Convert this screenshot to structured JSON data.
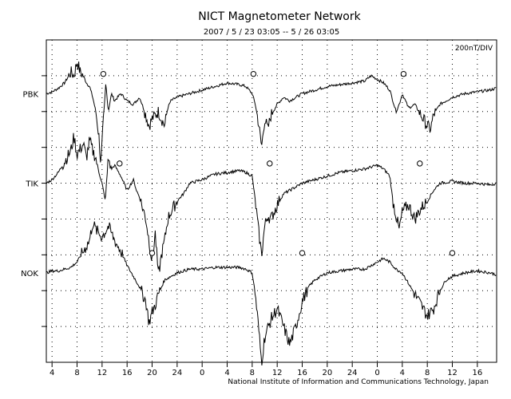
{
  "chart_data": {
    "type": "line",
    "title": "NICT Magnetometer Network",
    "subtitle": "2007 / 5 / 23   03:05  --  5 / 26   03:05",
    "scale_label": "200nT/DIV",
    "footer": "National Institute of Information and Communications Technology, Japan",
    "x_tick_labels": [
      "4",
      "8",
      "12",
      "16",
      "20",
      "24",
      "0",
      "4",
      "8",
      "12",
      "16",
      "20",
      "24",
      "0",
      "4",
      "8",
      "12",
      "16",
      "20",
      "24",
      "0"
    ],
    "x_range_hours": [
      3.0833,
      75.0833
    ],
    "grid": true,
    "series": [
      {
        "name": "PBK",
        "baseline_div": 1.5,
        "midnight_markers_hours": [
          12.2,
          36.2,
          60.2
        ],
        "values": [
          [
            3.1,
            0.0
          ],
          [
            4,
            0.05
          ],
          [
            5,
            0.15
          ],
          [
            6,
            0.3
          ],
          [
            7,
            0.6
          ],
          [
            7.5,
            0.5
          ],
          [
            8,
            0.9
          ],
          [
            8.5,
            0.6
          ],
          [
            9,
            0.5
          ],
          [
            9.5,
            0.3
          ],
          [
            10,
            0.2
          ],
          [
            10.5,
            -0.1
          ],
          [
            11,
            -0.5
          ],
          [
            11.5,
            -1.2
          ],
          [
            11.8,
            -2.0
          ],
          [
            12.2,
            -0.8
          ],
          [
            12.6,
            0.3
          ],
          [
            13,
            -0.5
          ],
          [
            13.5,
            0.0
          ],
          [
            14,
            -0.2
          ],
          [
            15,
            0.0
          ],
          [
            16,
            -0.2
          ],
          [
            17,
            -0.3
          ],
          [
            18,
            -0.1
          ],
          [
            19,
            -0.6
          ],
          [
            19.5,
            -0.9
          ],
          [
            20,
            -0.7
          ],
          [
            21,
            -0.5
          ],
          [
            22,
            -0.9
          ],
          [
            22.5,
            -0.4
          ],
          [
            23,
            -0.2
          ],
          [
            24,
            -0.1
          ],
          [
            26,
            0.0
          ],
          [
            28,
            0.1
          ],
          [
            30,
            0.2
          ],
          [
            32,
            0.3
          ],
          [
            34,
            0.25
          ],
          [
            35,
            0.2
          ],
          [
            36,
            0.0
          ],
          [
            36.5,
            -0.3
          ],
          [
            37,
            -0.8
          ],
          [
            37.5,
            -1.5
          ],
          [
            38,
            -0.7
          ],
          [
            38.5,
            -1.0
          ],
          [
            39,
            -0.6
          ],
          [
            40,
            -0.3
          ],
          [
            41,
            -0.1
          ],
          [
            42,
            -0.2
          ],
          [
            44,
            0.0
          ],
          [
            46,
            0.1
          ],
          [
            48,
            0.2
          ],
          [
            50,
            0.25
          ],
          [
            52,
            0.3
          ],
          [
            54,
            0.35
          ],
          [
            55,
            0.5
          ],
          [
            56,
            0.4
          ],
          [
            57,
            0.3
          ],
          [
            58,
            0.1
          ],
          [
            59,
            -0.5
          ],
          [
            59.5,
            -0.3
          ],
          [
            60,
            0.0
          ],
          [
            60.5,
            -0.2
          ],
          [
            61,
            -0.4
          ],
          [
            62,
            -0.3
          ],
          [
            63,
            -0.6
          ],
          [
            64,
            -0.9
          ],
          [
            64.5,
            -1.0
          ],
          [
            65,
            -0.6
          ],
          [
            66,
            -0.3
          ],
          [
            67,
            -0.2
          ],
          [
            68,
            -0.1
          ],
          [
            70,
            0.0
          ],
          [
            72,
            0.05
          ],
          [
            74,
            0.1
          ],
          [
            75,
            0.15
          ]
        ]
      },
      {
        "name": "TIK",
        "baseline_div": 4.0,
        "midnight_markers_hours": [
          14.8,
          38.8,
          62.8
        ],
        "values": [
          [
            3.1,
            0.0
          ],
          [
            4,
            0.1
          ],
          [
            5,
            0.3
          ],
          [
            6,
            0.6
          ],
          [
            7,
            0.9
          ],
          [
            7.5,
            1.3
          ],
          [
            8,
            0.8
          ],
          [
            9,
            1.1
          ],
          [
            9.5,
            0.7
          ],
          [
            10,
            1.2
          ],
          [
            10.5,
            0.9
          ],
          [
            11,
            0.7
          ],
          [
            11.5,
            0.3
          ],
          [
            12,
            0.0
          ],
          [
            12.5,
            -0.5
          ],
          [
            13,
            0.7
          ],
          [
            13.5,
            0.4
          ],
          [
            14,
            0.5
          ],
          [
            15,
            0.2
          ],
          [
            16,
            -0.2
          ],
          [
            17,
            0.1
          ],
          [
            17.5,
            -0.2
          ],
          [
            18,
            -0.4
          ],
          [
            19,
            -1.0
          ],
          [
            19.5,
            -1.6
          ],
          [
            20,
            -2.2
          ],
          [
            20.5,
            -1.4
          ],
          [
            21,
            -2.6
          ],
          [
            21.5,
            -2.0
          ],
          [
            22,
            -1.6
          ],
          [
            22.5,
            -1.0
          ],
          [
            23,
            -0.8
          ],
          [
            24,
            -0.5
          ],
          [
            25,
            -0.3
          ],
          [
            26,
            0.0
          ],
          [
            28,
            0.1
          ],
          [
            30,
            0.25
          ],
          [
            32,
            0.3
          ],
          [
            34,
            0.35
          ],
          [
            35,
            0.3
          ],
          [
            36,
            0.2
          ],
          [
            36.5,
            -0.5
          ],
          [
            37,
            -1.3
          ],
          [
            37.5,
            -2.0
          ],
          [
            38,
            -1.2
          ],
          [
            38.5,
            -0.9
          ],
          [
            39,
            -1.0
          ],
          [
            40,
            -0.6
          ],
          [
            41,
            -0.3
          ],
          [
            42,
            -0.2
          ],
          [
            44,
            0.0
          ],
          [
            46,
            0.1
          ],
          [
            48,
            0.2
          ],
          [
            50,
            0.3
          ],
          [
            52,
            0.35
          ],
          [
            54,
            0.4
          ],
          [
            55,
            0.45
          ],
          [
            56,
            0.5
          ],
          [
            57,
            0.4
          ],
          [
            58,
            0.2
          ],
          [
            58.5,
            -0.5
          ],
          [
            59,
            -0.9
          ],
          [
            59.5,
            -1.3
          ],
          [
            60,
            -0.8
          ],
          [
            61,
            -0.6
          ],
          [
            62,
            -1.0
          ],
          [
            63,
            -0.7
          ],
          [
            64,
            -0.5
          ],
          [
            65,
            -0.2
          ],
          [
            66,
            0.0
          ],
          [
            68,
            0.05
          ],
          [
            70,
            0.0
          ],
          [
            72,
            0.0
          ],
          [
            74,
            -0.05
          ],
          [
            75,
            0.0
          ]
        ]
      },
      {
        "name": "NOK",
        "baseline_div": 6.5,
        "midnight_markers_hours": [
          20.0,
          44.0,
          68.0
        ],
        "values": [
          [
            3.1,
            0.0
          ],
          [
            4,
            0.05
          ],
          [
            5,
            0.05
          ],
          [
            6,
            0.1
          ],
          [
            7,
            0.15
          ],
          [
            8,
            0.3
          ],
          [
            9,
            0.6
          ],
          [
            10,
            0.9
          ],
          [
            10.5,
            1.4
          ],
          [
            11,
            1.2
          ],
          [
            12,
            1.0
          ],
          [
            13,
            1.3
          ],
          [
            14,
            0.9
          ],
          [
            15,
            0.6
          ],
          [
            16,
            0.2
          ],
          [
            17,
            -0.1
          ],
          [
            18,
            -0.4
          ],
          [
            19,
            -0.8
          ],
          [
            19.5,
            -1.4
          ],
          [
            20,
            -1.1
          ],
          [
            20.5,
            -0.9
          ],
          [
            21,
            -0.6
          ],
          [
            21.5,
            -0.4
          ],
          [
            22,
            -0.2
          ],
          [
            23,
            -0.1
          ],
          [
            24,
            0.0
          ],
          [
            26,
            0.1
          ],
          [
            28,
            0.1
          ],
          [
            30,
            0.15
          ],
          [
            32,
            0.15
          ],
          [
            34,
            0.15
          ],
          [
            35,
            0.1
          ],
          [
            36,
            0.0
          ],
          [
            36.5,
            -0.6
          ],
          [
            37,
            -1.5
          ],
          [
            37.5,
            -2.5
          ],
          [
            38,
            -1.8
          ],
          [
            39,
            -1.3
          ],
          [
            40,
            -1.0
          ],
          [
            41,
            -1.5
          ],
          [
            42,
            -2.0
          ],
          [
            43,
            -1.5
          ],
          [
            44,
            -0.8
          ],
          [
            45,
            -0.4
          ],
          [
            46,
            -0.2
          ],
          [
            48,
            0.0
          ],
          [
            50,
            0.05
          ],
          [
            52,
            0.1
          ],
          [
            54,
            0.1
          ],
          [
            55,
            0.2
          ],
          [
            56,
            0.3
          ],
          [
            57,
            0.4
          ],
          [
            58,
            0.3
          ],
          [
            59,
            0.1
          ],
          [
            60,
            0.0
          ],
          [
            61,
            -0.3
          ],
          [
            62,
            -0.6
          ],
          [
            63,
            -0.9
          ],
          [
            64,
            -1.2
          ],
          [
            65,
            -1.0
          ],
          [
            66,
            -0.5
          ],
          [
            67,
            -0.2
          ],
          [
            68,
            -0.1
          ],
          [
            70,
            0.0
          ],
          [
            72,
            0.05
          ],
          [
            74,
            0.0
          ],
          [
            75,
            -0.05
          ]
        ]
      }
    ]
  }
}
